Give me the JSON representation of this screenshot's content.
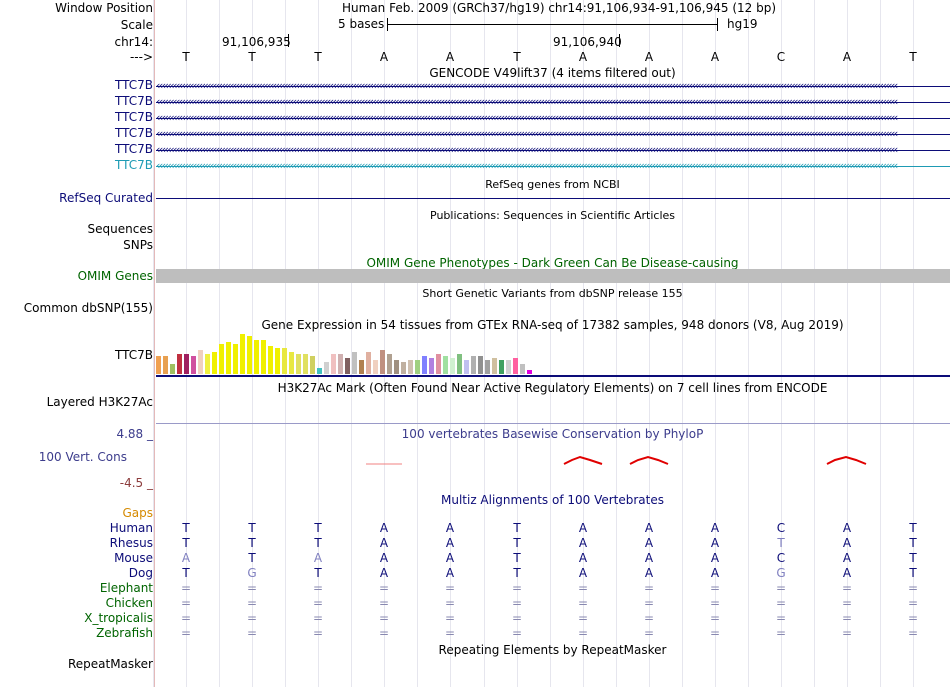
{
  "header": {
    "window_position_label": "Window Position",
    "assembly_position": "Human Feb. 2009 (GRCh37/hg19)   chr14:91,106,934-91,106,945 (12 bp)",
    "scale_label": "Scale",
    "scale_text": "5 bases",
    "scale_db": "hg19",
    "chrom_label": "chr14:",
    "pos_label_1": "91,106,935",
    "pos_label_2": "91,106,940",
    "strand_label": "--->",
    "bases": [
      "T",
      "T",
      "T",
      "A",
      "A",
      "T",
      "A",
      "A",
      "A",
      "C",
      "A",
      "T"
    ]
  },
  "gencode": {
    "title": "GENCODE V49lift37 (4 items filtered out)",
    "genes": [
      "TTC7B",
      "TTC7B",
      "TTC7B",
      "TTC7B",
      "TTC7B",
      "TTC7B"
    ],
    "colors": [
      "#0c0c78",
      "#0c0c78",
      "#0c0c78",
      "#0c0c78",
      "#0c0c78",
      "#1e9bb4"
    ]
  },
  "refseq": {
    "label": "RefSeq Curated",
    "title": "RefSeq genes from NCBI"
  },
  "publications": {
    "title": "Publications: Sequences in Scientific Articles",
    "label": "Sequences"
  },
  "snps": {
    "label": "SNPs"
  },
  "omim": {
    "title": "OMIM Gene Phenotypes - Dark Green Can Be Disease-causing",
    "label": "OMIM Genes"
  },
  "dbsnp": {
    "title": "Short Genetic Variants from dbSNP release 155",
    "label": "Common dbSNP(155)"
  },
  "gtex": {
    "title": "Gene Expression in 54 tissues from GTEx RNA-seq of 17382 samples, 948 donors (V8, Aug 2019)",
    "label": "TTC7B",
    "tissue_levels": [
      0.45,
      0.45,
      0.25,
      0.5,
      0.5,
      0.45,
      0.6,
      0.5,
      0.55,
      0.75,
      0.8,
      0.75,
      1.0,
      0.95,
      0.85,
      0.85,
      0.7,
      0.65,
      0.65,
      0.55,
      0.5,
      0.5,
      0.45,
      0.15,
      0.3,
      0.5,
      0.5,
      0.4,
      0.55,
      0.35,
      0.55,
      0.35,
      0.6,
      0.5,
      0.35,
      0.3,
      0.35,
      0.35,
      0.45,
      0.4,
      0.5,
      0.45,
      0.4,
      0.5,
      0.35,
      0.45,
      0.45,
      0.35,
      0.4,
      0.35,
      0.35,
      0.4,
      0.25,
      0.1
    ],
    "tissue_colors": [
      "#f0a050",
      "#e8a050",
      "#a0c060",
      "#c03040",
      "#a02060",
      "#d050a0",
      "#f0d0c0",
      "#f0f040",
      "#f0f000",
      "#f0f000",
      "#f0f000",
      "#f0f000",
      "#f0f000",
      "#f0f000",
      "#f0f000",
      "#f0f000",
      "#f0f000",
      "#f0f000",
      "#e8e840",
      "#e8e840",
      "#e0e060",
      "#e0e060",
      "#d0d060",
      "#40c0c0",
      "#d0d0d0",
      "#f0c0c0",
      "#d0b0b0",
      "#806060",
      "#c0c0c0",
      "#b08050",
      "#e0b0a0",
      "#f0d0c0",
      "#c09080",
      "#b0a090",
      "#a09080",
      "#c0b0a0",
      "#d0c0b0",
      "#a0d080",
      "#8080ff",
      "#b080e0",
      "#e090a0",
      "#a0e0a0",
      "#d0f0d0",
      "#80c080",
      "#c0c0f0",
      "#b0b0b0",
      "#909090",
      "#a0a0a0",
      "#d0c0a0",
      "#40a060",
      "#d0d0d0",
      "#ff60a0",
      "#c0c0c0",
      "#e000e0"
    ]
  },
  "h3k27ac": {
    "title": "H3K27Ac Mark (Often Found Near Active Regulatory Elements) on 7 cell lines from ENCODE",
    "label": "Layered H3K27Ac"
  },
  "conservation": {
    "title": "100 vertebrates Basewise Conservation by PhyloP",
    "max_label": "4.88 _",
    "track_label": "100 Vert. Cons",
    "min_label": "-4.5 _"
  },
  "multiz": {
    "title": "Multiz Alignments of 100 Vertebrates",
    "gaps_label": "Gaps",
    "species": [
      {
        "name": "Human",
        "bases": [
          "T",
          "T",
          "T",
          "A",
          "A",
          "T",
          "A",
          "A",
          "A",
          "C",
          "A",
          "T"
        ]
      },
      {
        "name": "Rhesus",
        "bases": [
          "T",
          "T",
          "T",
          "A",
          "A",
          "T",
          "A",
          "A",
          "A",
          "T",
          "A",
          "T"
        ]
      },
      {
        "name": "Mouse",
        "bases": [
          "A",
          "T",
          "A",
          "A",
          "A",
          "T",
          "A",
          "A",
          "A",
          "C",
          "A",
          "T"
        ]
      },
      {
        "name": "Dog",
        "bases": [
          "T",
          "G",
          "T",
          "A",
          "A",
          "T",
          "A",
          "A",
          "A",
          "G",
          "A",
          "T"
        ]
      },
      {
        "name": "Elephant",
        "bases": [
          "=",
          "=",
          "=",
          "=",
          "=",
          "=",
          "=",
          "=",
          "=",
          "=",
          "=",
          "="
        ]
      },
      {
        "name": "Chicken",
        "bases": [
          "=",
          "=",
          "=",
          "=",
          "=",
          "=",
          "=",
          "=",
          "=",
          "=",
          "=",
          "="
        ]
      },
      {
        "name": "X_tropicalis",
        "bases": [
          "=",
          "=",
          "=",
          "=",
          "=",
          "=",
          "=",
          "=",
          "=",
          "=",
          "=",
          "="
        ]
      },
      {
        "name": "Zebrafish",
        "bases": [
          "=",
          "=",
          "=",
          "=",
          "=",
          "=",
          "=",
          "=",
          "=",
          "=",
          "=",
          "="
        ]
      }
    ]
  },
  "repeatmasker": {
    "title": "Repeating Elements by RepeatMasker",
    "label": "RepeatMasker"
  },
  "colors": {
    "gene_blue": "#0c0c78",
    "cons_blue": "#3c3c8c",
    "cons_min": "#8c3c3c",
    "omim_green": "#006400",
    "gaps_orange": "#d58a00",
    "multiz_blue": "#0c0c78",
    "multiz_green": "#006400",
    "cons_peak_red": "#e00000"
  }
}
